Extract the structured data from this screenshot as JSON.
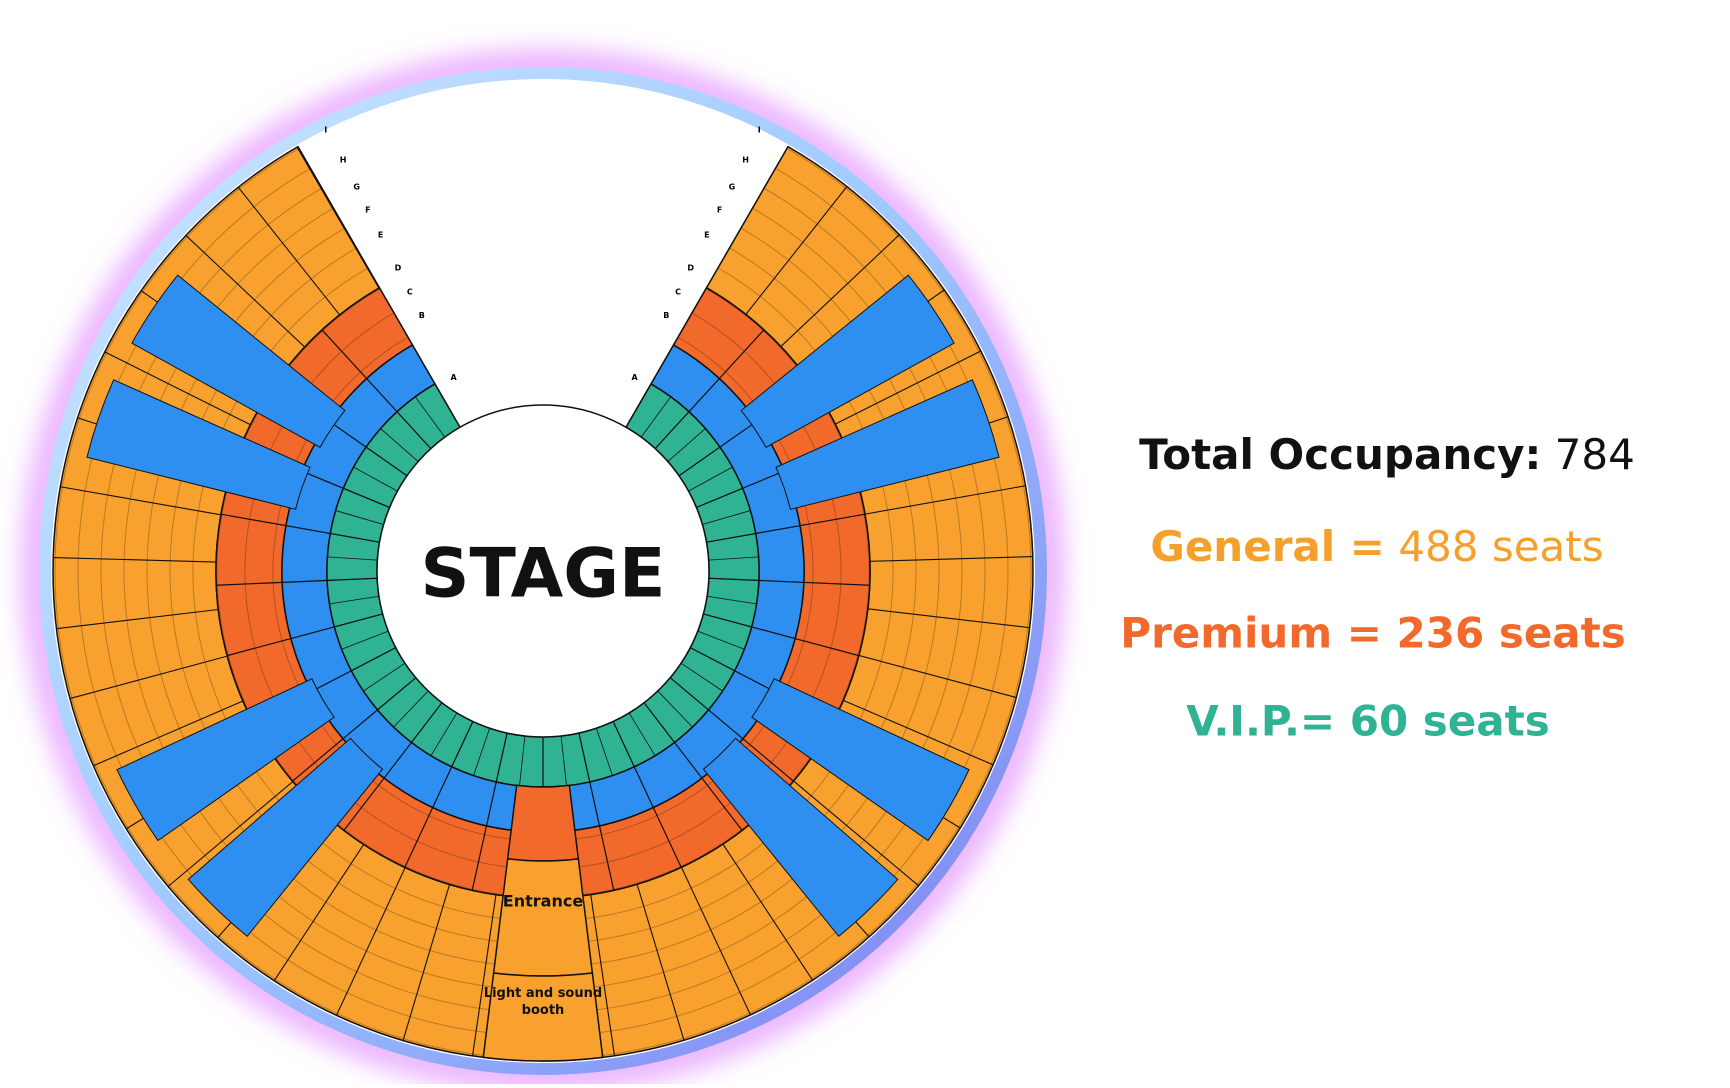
{
  "stage": {
    "label": "STAGE"
  },
  "entrance": {
    "label": "Entrance"
  },
  "booth": {
    "label": "Light and sound booth"
  },
  "rows_left": [
    "A",
    "B",
    "C",
    "D",
    "E",
    "F",
    "G",
    "H",
    "I"
  ],
  "rows_right": [
    "A",
    "B",
    "C",
    "D",
    "E",
    "F",
    "G",
    "H",
    "I"
  ],
  "summary": {
    "total": {
      "label": "Total Occupancy:",
      "value": "784"
    },
    "general": {
      "label": "General =",
      "value": "488 seats"
    },
    "premium": {
      "label": "Premium = 236 seats"
    },
    "vip": {
      "label": "V.I.P.= 60 seats"
    }
  }
}
